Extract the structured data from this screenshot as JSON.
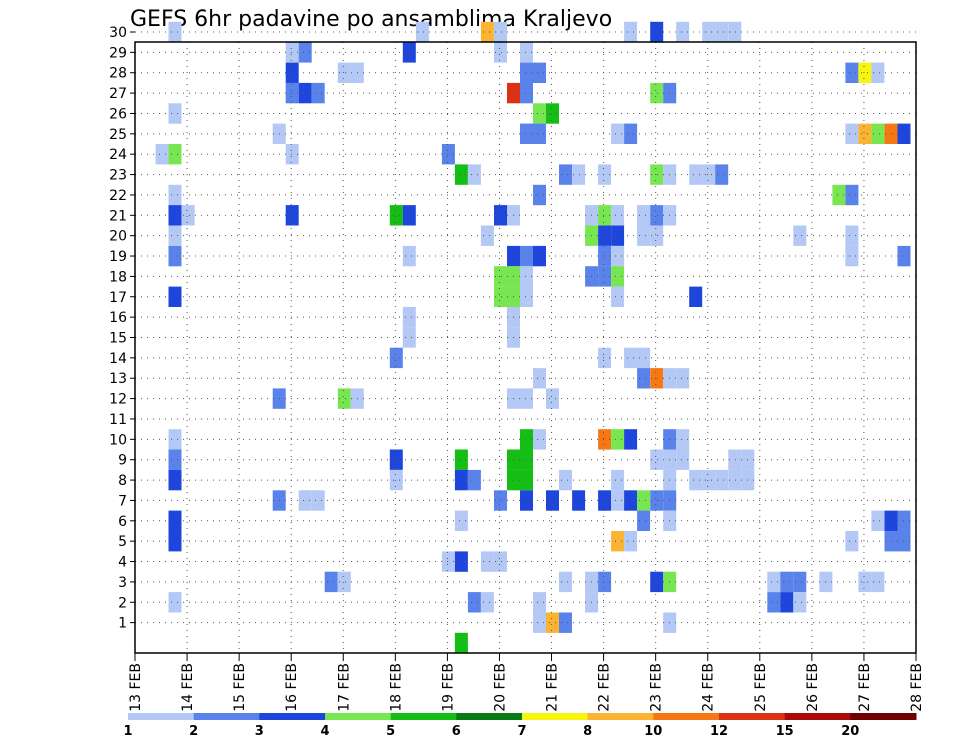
{
  "chart_data": {
    "type": "heatmap",
    "title": "GEFS 6hr padavine po ansamblima Kraljevo",
    "x_tick_labels": [
      "13 FEB",
      "14 FEB",
      "15 FEB",
      "16 FEB",
      "17 FEB",
      "18 FEB",
      "19 FEB",
      "20 FEB",
      "21 FEB",
      "22 FEB",
      "23 FEB",
      "24 FEB",
      "25 FEB",
      "26 FEB",
      "27 FEB",
      "28 FEB"
    ],
    "y_tick_labels": [
      "1",
      "2",
      "3",
      "4",
      "5",
      "6",
      "7",
      "8",
      "9",
      "10",
      "11",
      "12",
      "13",
      "14",
      "15",
      "16",
      "17",
      "18",
      "19",
      "20",
      "21",
      "22",
      "23",
      "24",
      "25",
      "26",
      "27",
      "28",
      "29",
      "30"
    ],
    "xlim_days": [
      13,
      28
    ],
    "ylim_members": [
      0,
      30
    ],
    "grid": "dotted",
    "legend": {
      "placement": "bottom",
      "labels": [
        "1",
        "2",
        "3",
        "4",
        "5",
        "6",
        "7",
        "8",
        "10",
        "12",
        "15",
        "20"
      ],
      "colors": [
        "#b4c8f5",
        "#5a82eb",
        "#1e46dc",
        "#78e650",
        "#14be14",
        "#0a7814",
        "#f5f50f",
        "#fab432",
        "#f57814",
        "#dc3214",
        "#aa0a0a",
        "#6e0000"
      ]
    },
    "note_cells": "cells = [member, day, level]; level is the legend band index (0 = 1..2, 1 = 2..3, ...)",
    "cells": [
      [
        30,
        13.75,
        0
      ],
      [
        30,
        18.5,
        0
      ],
      [
        30,
        19.75,
        7
      ],
      [
        30,
        20,
        0
      ],
      [
        30,
        22.5,
        0
      ],
      [
        30,
        23,
        2
      ],
      [
        30,
        23.5,
        0
      ],
      [
        30,
        24,
        0
      ],
      [
        30,
        24.25,
        0
      ],
      [
        30,
        24.5,
        0
      ],
      [
        29,
        16,
        0
      ],
      [
        29,
        16.25,
        1
      ],
      [
        29,
        18.25,
        2
      ],
      [
        29,
        20,
        0
      ],
      [
        29,
        20.5,
        0
      ],
      [
        28,
        16,
        2
      ],
      [
        28,
        17,
        0
      ],
      [
        28,
        17.25,
        0
      ],
      [
        28,
        20.5,
        1
      ],
      [
        28,
        20.75,
        1
      ],
      [
        28,
        26.75,
        1
      ],
      [
        28,
        27,
        6
      ],
      [
        28,
        27.25,
        0
      ],
      [
        27,
        16,
        1
      ],
      [
        27,
        16.25,
        2
      ],
      [
        27,
        16.5,
        1
      ],
      [
        27,
        20.25,
        9
      ],
      [
        27,
        20.5,
        1
      ],
      [
        27,
        23,
        3
      ],
      [
        27,
        23.25,
        1
      ],
      [
        26,
        13.75,
        0
      ],
      [
        26,
        20.75,
        3
      ],
      [
        26,
        21,
        4
      ],
      [
        25,
        15.75,
        0
      ],
      [
        25,
        20.5,
        1
      ],
      [
        25,
        20.75,
        1
      ],
      [
        25,
        22.25,
        0
      ],
      [
        25,
        22.5,
        1
      ],
      [
        25,
        26.75,
        0
      ],
      [
        25,
        27,
        7
      ],
      [
        25,
        27.25,
        3
      ],
      [
        25,
        27.5,
        8
      ],
      [
        25,
        27.75,
        2
      ],
      [
        24,
        13.5,
        0
      ],
      [
        24,
        13.75,
        3
      ],
      [
        24,
        16,
        0
      ],
      [
        24,
        19,
        1
      ],
      [
        23,
        19.25,
        4
      ],
      [
        23,
        19.5,
        0
      ],
      [
        23,
        21.25,
        1
      ],
      [
        23,
        21.5,
        0
      ],
      [
        23,
        22,
        0
      ],
      [
        23,
        23,
        3
      ],
      [
        23,
        23.25,
        0
      ],
      [
        23,
        23.75,
        0
      ],
      [
        23,
        24,
        0
      ],
      [
        23,
        24.25,
        1
      ],
      [
        22,
        13.75,
        0
      ],
      [
        22,
        20.75,
        1
      ],
      [
        22,
        26.5,
        3
      ],
      [
        22,
        26.75,
        1
      ],
      [
        21,
        13.75,
        2
      ],
      [
        21,
        14,
        0
      ],
      [
        21,
        16,
        2
      ],
      [
        21,
        18,
        4
      ],
      [
        21,
        18.25,
        2
      ],
      [
        21,
        20,
        2
      ],
      [
        21,
        20.25,
        0
      ],
      [
        21,
        21.75,
        0
      ],
      [
        21,
        22,
        3
      ],
      [
        21,
        22.25,
        0
      ],
      [
        21,
        22.75,
        0
      ],
      [
        21,
        23,
        1
      ],
      [
        21,
        23.25,
        0
      ],
      [
        20,
        13.75,
        0
      ],
      [
        20,
        19.75,
        0
      ],
      [
        20,
        21.75,
        3
      ],
      [
        20,
        22,
        2
      ],
      [
        20,
        22.25,
        2
      ],
      [
        20,
        22.75,
        0
      ],
      [
        20,
        23,
        0
      ],
      [
        20,
        25.75,
        0
      ],
      [
        20,
        26.75,
        0
      ],
      [
        19,
        13.75,
        1
      ],
      [
        19,
        18.25,
        0
      ],
      [
        19,
        20.25,
        2
      ],
      [
        19,
        20.5,
        1
      ],
      [
        19,
        20.75,
        2
      ],
      [
        19,
        22,
        1
      ],
      [
        19,
        22.25,
        0
      ],
      [
        19,
        26.75,
        0
      ],
      [
        19,
        27.75,
        1
      ],
      [
        18,
        20,
        3
      ],
      [
        18,
        20.25,
        3
      ],
      [
        18,
        20.5,
        0
      ],
      [
        18,
        21.75,
        1
      ],
      [
        18,
        22,
        1
      ],
      [
        18,
        22.25,
        3
      ],
      [
        17,
        13.75,
        2
      ],
      [
        17,
        20,
        3
      ],
      [
        17,
        20.25,
        3
      ],
      [
        17,
        20.5,
        0
      ],
      [
        17,
        22.25,
        0
      ],
      [
        17,
        23.75,
        2
      ],
      [
        16,
        18.25,
        0
      ],
      [
        16,
        20.25,
        0
      ],
      [
        15,
        18.25,
        0
      ],
      [
        15,
        20.25,
        0
      ],
      [
        14,
        18,
        1
      ],
      [
        14,
        22,
        0
      ],
      [
        14,
        22.5,
        0
      ],
      [
        14,
        22.75,
        0
      ],
      [
        13,
        20.75,
        0
      ],
      [
        13,
        22.75,
        1
      ],
      [
        13,
        23,
        8
      ],
      [
        13,
        23.25,
        0
      ],
      [
        13,
        23.5,
        0
      ],
      [
        12,
        15.75,
        1
      ],
      [
        12,
        17,
        3
      ],
      [
        12,
        17.25,
        0
      ],
      [
        12,
        20.25,
        0
      ],
      [
        12,
        20.5,
        0
      ],
      [
        12,
        21,
        0
      ],
      [
        10,
        13.75,
        0
      ],
      [
        10,
        20.5,
        4
      ],
      [
        10,
        20.75,
        0
      ],
      [
        10,
        22,
        8
      ],
      [
        10,
        22.25,
        3
      ],
      [
        10,
        22.5,
        2
      ],
      [
        10,
        23.25,
        1
      ],
      [
        10,
        23.5,
        0
      ],
      [
        9,
        13.75,
        1
      ],
      [
        9,
        18,
        2
      ],
      [
        9,
        19.25,
        4
      ],
      [
        9,
        20.25,
        4
      ],
      [
        9,
        20.5,
        4
      ],
      [
        9,
        23,
        0
      ],
      [
        9,
        23.25,
        0
      ],
      [
        9,
        23.5,
        0
      ],
      [
        9,
        24.5,
        0
      ],
      [
        9,
        24.75,
        0
      ],
      [
        8,
        13.75,
        2
      ],
      [
        8,
        18,
        0
      ],
      [
        8,
        19.25,
        2
      ],
      [
        8,
        19.5,
        1
      ],
      [
        8,
        20.25,
        4
      ],
      [
        8,
        20.5,
        4
      ],
      [
        8,
        21.25,
        0
      ],
      [
        8,
        22.25,
        0
      ],
      [
        8,
        23.25,
        0
      ],
      [
        8,
        23.75,
        0
      ],
      [
        8,
        24,
        0
      ],
      [
        8,
        24.25,
        0
      ],
      [
        8,
        24.5,
        0
      ],
      [
        8,
        24.75,
        0
      ],
      [
        7,
        15.75,
        1
      ],
      [
        7,
        16.25,
        0
      ],
      [
        7,
        16.5,
        0
      ],
      [
        7,
        20,
        1
      ],
      [
        7,
        20.5,
        2
      ],
      [
        7,
        21,
        2
      ],
      [
        7,
        21.5,
        2
      ],
      [
        7,
        22,
        2
      ],
      [
        7,
        22.25,
        0
      ],
      [
        7,
        22.5,
        2
      ],
      [
        7,
        22.75,
        3
      ],
      [
        7,
        23,
        1
      ],
      [
        7,
        23.25,
        1
      ],
      [
        6,
        13.75,
        2
      ],
      [
        6,
        19.25,
        0
      ],
      [
        6,
        22.75,
        1
      ],
      [
        6,
        23.25,
        0
      ],
      [
        6,
        27.25,
        0
      ],
      [
        6,
        27.5,
        2
      ],
      [
        6,
        27.75,
        1
      ],
      [
        5,
        13.75,
        2
      ],
      [
        5,
        22.25,
        7
      ],
      [
        5,
        22.5,
        0
      ],
      [
        5,
        26.75,
        0
      ],
      [
        5,
        27.5,
        1
      ],
      [
        5,
        27.75,
        1
      ],
      [
        4,
        19,
        0
      ],
      [
        4,
        19.25,
        2
      ],
      [
        4,
        19.75,
        0
      ],
      [
        4,
        20,
        0
      ],
      [
        3,
        16.75,
        1
      ],
      [
        3,
        17,
        0
      ],
      [
        3,
        21.25,
        0
      ],
      [
        3,
        21.75,
        0
      ],
      [
        3,
        22,
        1
      ],
      [
        3,
        23,
        2
      ],
      [
        3,
        23.25,
        3
      ],
      [
        3,
        25.25,
        0
      ],
      [
        3,
        25.5,
        1
      ],
      [
        3,
        25.75,
        1
      ],
      [
        3,
        26.25,
        0
      ],
      [
        3,
        27,
        0
      ],
      [
        3,
        27.25,
        0
      ],
      [
        2,
        13.75,
        0
      ],
      [
        2,
        19.5,
        1
      ],
      [
        2,
        19.75,
        0
      ],
      [
        2,
        20.75,
        0
      ],
      [
        2,
        21.75,
        0
      ],
      [
        2,
        25.25,
        1
      ],
      [
        2,
        25.5,
        2
      ],
      [
        2,
        25.75,
        0
      ],
      [
        1,
        20.75,
        0
      ],
      [
        1,
        21,
        7
      ],
      [
        1,
        21.25,
        1
      ],
      [
        1,
        23.25,
        0
      ],
      [
        0,
        19.25,
        4
      ]
    ]
  }
}
